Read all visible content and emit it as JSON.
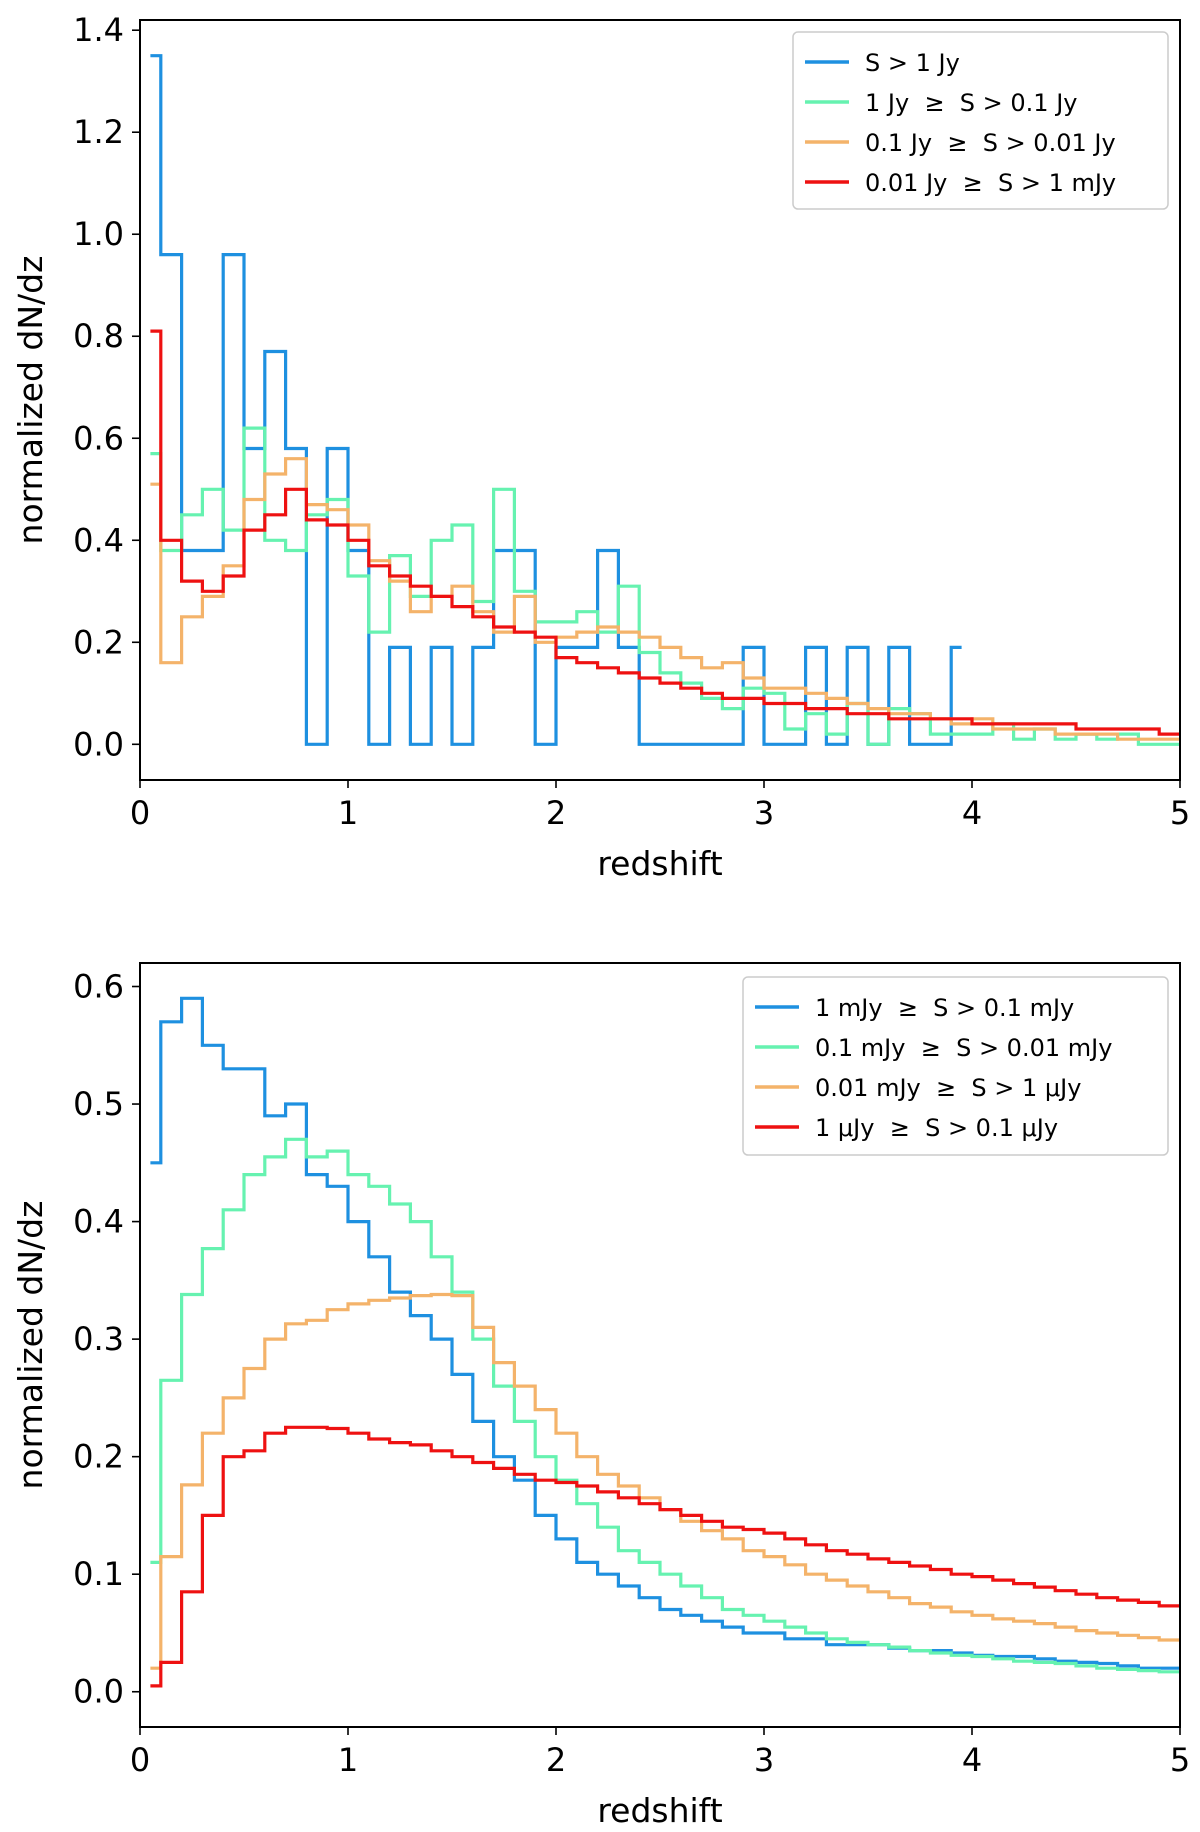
{
  "colors": {
    "blue": "#1e90e0",
    "green": "#66f2b0",
    "orange": "#f4b36a",
    "red": "#ee1111"
  },
  "chart_data": [
    {
      "type": "step-histogram",
      "xlabel": "redshift",
      "ylabel": "normalized dN/dz",
      "xlim": [
        0,
        5
      ],
      "ylim": [
        -0.07,
        1.42
      ],
      "xticks": [
        0,
        1,
        2,
        3,
        4,
        5
      ],
      "yticks": [
        0.0,
        0.2,
        0.4,
        0.6,
        0.8,
        1.0,
        1.2,
        1.4
      ],
      "ytick_labels": [
        "0.0",
        "0.2",
        "0.4",
        "0.6",
        "0.8",
        "1.0",
        "1.2",
        "1.4"
      ],
      "legend_position": "top-right",
      "series": [
        {
          "name": "S > 1 Jy",
          "color": "blue",
          "bins": [
            0.05,
            0.1,
            0.2,
            0.3,
            0.4,
            0.5,
            0.6,
            0.7,
            0.8,
            0.9,
            1.0,
            1.1,
            1.2,
            1.3,
            1.4,
            1.5,
            1.6,
            1.7,
            1.8,
            1.9,
            2.0,
            2.1,
            2.2,
            2.3,
            2.4,
            2.5,
            2.6,
            2.7,
            2.8,
            2.9,
            3.0,
            3.1,
            3.2,
            3.3,
            3.4,
            3.5,
            3.6,
            3.7,
            3.8,
            3.9,
            3.95
          ],
          "values": [
            1.35,
            0.96,
            0.38,
            0.38,
            0.96,
            0.58,
            0.77,
            0.58,
            0.0,
            0.58,
            0.38,
            0.0,
            0.19,
            0.0,
            0.19,
            0.0,
            0.19,
            0.38,
            0.38,
            0.0,
            0.19,
            0.19,
            0.38,
            0.19,
            0.0,
            0.0,
            0.0,
            0.0,
            0.0,
            0.19,
            0.0,
            0.0,
            0.19,
            0.0,
            0.19,
            0.0,
            0.19,
            0.0,
            0.0,
            0.19
          ]
        },
        {
          "name": "1 Jy  ≥  S > 0.1 Jy",
          "color": "green",
          "bins": [
            0.05,
            0.1,
            0.2,
            0.3,
            0.4,
            0.5,
            0.6,
            0.7,
            0.8,
            0.9,
            1.0,
            1.1,
            1.2,
            1.3,
            1.4,
            1.5,
            1.6,
            1.7,
            1.8,
            1.9,
            2.0,
            2.1,
            2.2,
            2.3,
            2.4,
            2.5,
            2.6,
            2.7,
            2.8,
            2.9,
            3.0,
            3.1,
            3.2,
            3.3,
            3.4,
            3.5,
            3.6,
            3.7,
            3.8,
            3.9,
            4.0,
            4.1,
            4.2,
            4.3,
            4.4,
            4.5,
            4.6,
            4.7,
            4.8,
            4.9,
            5.0
          ],
          "values": [
            0.57,
            0.38,
            0.45,
            0.5,
            0.42,
            0.62,
            0.4,
            0.38,
            0.45,
            0.48,
            0.33,
            0.22,
            0.37,
            0.29,
            0.4,
            0.43,
            0.28,
            0.5,
            0.3,
            0.24,
            0.24,
            0.26,
            0.22,
            0.31,
            0.18,
            0.14,
            0.12,
            0.09,
            0.07,
            0.11,
            0.1,
            0.03,
            0.06,
            0.02,
            0.08,
            0.0,
            0.07,
            0.06,
            0.02,
            0.02,
            0.02,
            0.04,
            0.01,
            0.03,
            0.01,
            0.02,
            0.01,
            0.02,
            0.0,
            0.0
          ]
        },
        {
          "name": "0.1 Jy  ≥  S > 0.01 Jy",
          "color": "orange",
          "bins": [
            0.05,
            0.1,
            0.2,
            0.3,
            0.4,
            0.5,
            0.6,
            0.7,
            0.8,
            0.9,
            1.0,
            1.1,
            1.2,
            1.3,
            1.4,
            1.5,
            1.6,
            1.7,
            1.8,
            1.9,
            2.0,
            2.1,
            2.2,
            2.3,
            2.4,
            2.5,
            2.6,
            2.7,
            2.8,
            2.9,
            3.0,
            3.1,
            3.2,
            3.3,
            3.4,
            3.5,
            3.6,
            3.7,
            3.8,
            3.9,
            4.0,
            4.1,
            4.2,
            4.3,
            4.4,
            4.5,
            4.6,
            4.7,
            4.8,
            4.9,
            5.0
          ],
          "values": [
            0.51,
            0.16,
            0.25,
            0.29,
            0.35,
            0.48,
            0.53,
            0.56,
            0.47,
            0.46,
            0.43,
            0.36,
            0.32,
            0.26,
            0.29,
            0.31,
            0.26,
            0.22,
            0.29,
            0.2,
            0.21,
            0.22,
            0.23,
            0.22,
            0.21,
            0.19,
            0.17,
            0.15,
            0.16,
            0.13,
            0.11,
            0.11,
            0.1,
            0.09,
            0.08,
            0.07,
            0.06,
            0.06,
            0.05,
            0.04,
            0.05,
            0.03,
            0.03,
            0.03,
            0.02,
            0.02,
            0.02,
            0.01,
            0.01,
            0.01
          ]
        },
        {
          "name": "0.01 Jy  ≥  S > 1 mJy",
          "color": "red",
          "bins": [
            0.05,
            0.1,
            0.2,
            0.3,
            0.4,
            0.5,
            0.6,
            0.7,
            0.8,
            0.9,
            1.0,
            1.1,
            1.2,
            1.3,
            1.4,
            1.5,
            1.6,
            1.7,
            1.8,
            1.9,
            2.0,
            2.1,
            2.2,
            2.3,
            2.4,
            2.5,
            2.6,
            2.7,
            2.8,
            2.9,
            3.0,
            3.1,
            3.2,
            3.3,
            3.4,
            3.5,
            3.6,
            3.7,
            3.8,
            3.9,
            4.0,
            4.1,
            4.2,
            4.3,
            4.4,
            4.5,
            4.6,
            4.7,
            4.8,
            4.9,
            5.0
          ],
          "values": [
            0.81,
            0.4,
            0.32,
            0.3,
            0.33,
            0.42,
            0.45,
            0.5,
            0.44,
            0.43,
            0.4,
            0.35,
            0.33,
            0.31,
            0.29,
            0.27,
            0.25,
            0.23,
            0.22,
            0.21,
            0.17,
            0.16,
            0.15,
            0.14,
            0.13,
            0.12,
            0.11,
            0.1,
            0.09,
            0.09,
            0.08,
            0.08,
            0.07,
            0.07,
            0.06,
            0.06,
            0.05,
            0.05,
            0.05,
            0.05,
            0.04,
            0.04,
            0.04,
            0.04,
            0.04,
            0.03,
            0.03,
            0.03,
            0.03,
            0.02
          ]
        }
      ]
    },
    {
      "type": "step-histogram",
      "xlabel": "redshift",
      "ylabel": "normalized dN/dz",
      "xlim": [
        0,
        5
      ],
      "ylim": [
        -0.03,
        0.62
      ],
      "xticks": [
        0,
        1,
        2,
        3,
        4,
        5
      ],
      "yticks": [
        0.0,
        0.1,
        0.2,
        0.3,
        0.4,
        0.5,
        0.6
      ],
      "ytick_labels": [
        "0.0",
        "0.1",
        "0.2",
        "0.3",
        "0.4",
        "0.5",
        "0.6"
      ],
      "legend_position": "top-right",
      "series": [
        {
          "name": "1 mJy  ≥  S > 0.1 mJy",
          "color": "blue",
          "bins": [
            0.05,
            0.1,
            0.2,
            0.3,
            0.4,
            0.5,
            0.6,
            0.7,
            0.8,
            0.9,
            1.0,
            1.1,
            1.2,
            1.3,
            1.4,
            1.5,
            1.6,
            1.7,
            1.8,
            1.9,
            2.0,
            2.1,
            2.2,
            2.3,
            2.4,
            2.5,
            2.6,
            2.7,
            2.8,
            2.9,
            3.0,
            3.1,
            3.2,
            3.3,
            3.4,
            3.5,
            3.6,
            3.7,
            3.8,
            3.9,
            4.0,
            4.1,
            4.2,
            4.3,
            4.4,
            4.5,
            4.6,
            4.7,
            4.8,
            4.9,
            5.0
          ],
          "values": [
            0.45,
            0.57,
            0.59,
            0.55,
            0.53,
            0.53,
            0.49,
            0.5,
            0.44,
            0.43,
            0.4,
            0.37,
            0.34,
            0.32,
            0.3,
            0.27,
            0.23,
            0.2,
            0.18,
            0.15,
            0.13,
            0.11,
            0.1,
            0.09,
            0.08,
            0.07,
            0.065,
            0.06,
            0.055,
            0.05,
            0.05,
            0.045,
            0.045,
            0.04,
            0.04,
            0.04,
            0.037,
            0.035,
            0.035,
            0.033,
            0.031,
            0.03,
            0.03,
            0.028,
            0.026,
            0.025,
            0.024,
            0.022,
            0.02,
            0.02
          ]
        },
        {
          "name": "0.1 mJy  ≥  S > 0.01 mJy",
          "color": "green",
          "bins": [
            0.05,
            0.1,
            0.2,
            0.3,
            0.4,
            0.5,
            0.6,
            0.7,
            0.8,
            0.9,
            1.0,
            1.1,
            1.2,
            1.3,
            1.4,
            1.5,
            1.6,
            1.7,
            1.8,
            1.9,
            2.0,
            2.1,
            2.2,
            2.3,
            2.4,
            2.5,
            2.6,
            2.7,
            2.8,
            2.9,
            3.0,
            3.1,
            3.2,
            3.3,
            3.4,
            3.5,
            3.6,
            3.7,
            3.8,
            3.9,
            4.0,
            4.1,
            4.2,
            4.3,
            4.4,
            4.5,
            4.6,
            4.7,
            4.8,
            4.9,
            5.0
          ],
          "values": [
            0.11,
            0.265,
            0.338,
            0.377,
            0.41,
            0.44,
            0.455,
            0.47,
            0.455,
            0.46,
            0.44,
            0.43,
            0.415,
            0.4,
            0.37,
            0.34,
            0.3,
            0.26,
            0.23,
            0.2,
            0.18,
            0.16,
            0.14,
            0.12,
            0.11,
            0.1,
            0.09,
            0.08,
            0.07,
            0.065,
            0.06,
            0.055,
            0.05,
            0.045,
            0.042,
            0.04,
            0.038,
            0.035,
            0.033,
            0.031,
            0.03,
            0.028,
            0.026,
            0.025,
            0.024,
            0.022,
            0.02,
            0.019,
            0.018,
            0.017
          ]
        },
        {
          "name": "0.01 mJy  ≥  S > 1 μJy",
          "color": "orange",
          "bins": [
            0.05,
            0.1,
            0.2,
            0.3,
            0.4,
            0.5,
            0.6,
            0.7,
            0.8,
            0.9,
            1.0,
            1.1,
            1.2,
            1.3,
            1.4,
            1.5,
            1.6,
            1.7,
            1.8,
            1.9,
            2.0,
            2.1,
            2.2,
            2.3,
            2.4,
            2.5,
            2.6,
            2.7,
            2.8,
            2.9,
            3.0,
            3.1,
            3.2,
            3.3,
            3.4,
            3.5,
            3.6,
            3.7,
            3.8,
            3.9,
            4.0,
            4.1,
            4.2,
            4.3,
            4.4,
            4.5,
            4.6,
            4.7,
            4.8,
            4.9,
            5.0
          ],
          "values": [
            0.02,
            0.115,
            0.176,
            0.22,
            0.25,
            0.275,
            0.3,
            0.313,
            0.316,
            0.325,
            0.33,
            0.333,
            0.335,
            0.337,
            0.338,
            0.337,
            0.31,
            0.28,
            0.26,
            0.24,
            0.22,
            0.2,
            0.185,
            0.175,
            0.165,
            0.155,
            0.145,
            0.137,
            0.13,
            0.12,
            0.115,
            0.108,
            0.1,
            0.095,
            0.09,
            0.085,
            0.08,
            0.075,
            0.072,
            0.068,
            0.065,
            0.062,
            0.06,
            0.058,
            0.055,
            0.052,
            0.05,
            0.048,
            0.046,
            0.044
          ]
        },
        {
          "name": "1 μJy  ≥  S > 0.1 μJy",
          "color": "red",
          "bins": [
            0.05,
            0.1,
            0.2,
            0.3,
            0.4,
            0.5,
            0.6,
            0.7,
            0.8,
            0.9,
            1.0,
            1.1,
            1.2,
            1.3,
            1.4,
            1.5,
            1.6,
            1.7,
            1.8,
            1.9,
            2.0,
            2.1,
            2.2,
            2.3,
            2.4,
            2.5,
            2.6,
            2.7,
            2.8,
            2.9,
            3.0,
            3.1,
            3.2,
            3.3,
            3.4,
            3.5,
            3.6,
            3.7,
            3.8,
            3.9,
            4.0,
            4.1,
            4.2,
            4.3,
            4.4,
            4.5,
            4.6,
            4.7,
            4.8,
            4.9,
            5.0
          ],
          "values": [
            0.005,
            0.025,
            0.085,
            0.15,
            0.2,
            0.205,
            0.22,
            0.225,
            0.225,
            0.224,
            0.22,
            0.215,
            0.212,
            0.21,
            0.205,
            0.2,
            0.195,
            0.19,
            0.185,
            0.18,
            0.178,
            0.175,
            0.17,
            0.165,
            0.16,
            0.155,
            0.15,
            0.145,
            0.14,
            0.138,
            0.135,
            0.13,
            0.125,
            0.12,
            0.117,
            0.113,
            0.11,
            0.107,
            0.104,
            0.1,
            0.098,
            0.095,
            0.092,
            0.089,
            0.086,
            0.083,
            0.08,
            0.078,
            0.076,
            0.073
          ]
        }
      ]
    }
  ]
}
